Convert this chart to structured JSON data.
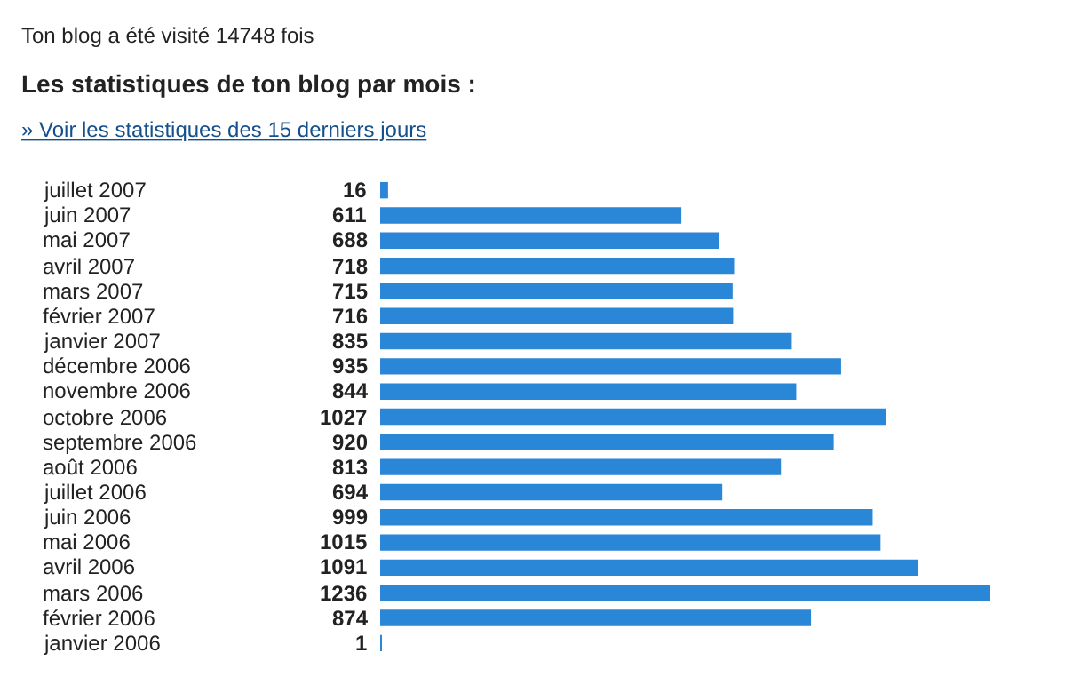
{
  "chart_data": {
    "type": "bar",
    "orientation": "horizontal",
    "title": "Ton blog a été visité 14748 fois",
    "subtitle": "Les statistiques de ton blog par mois :",
    "annotations": [
      "» Voir les statistiques des 15 derniers jours"
    ],
    "categories": [
      "juillet 2007",
      "juin 2007",
      "mai 2007",
      "avril 2007",
      "mars 2007",
      "février 2007",
      "janvier 2007",
      "décembre 2006",
      "novembre 2006",
      "octobre 2006",
      "septembre 2006",
      "août 2006",
      "juillet 2006",
      "juin 2006",
      "mai 2006",
      "avril 2006",
      "mars 2006",
      "février 2006",
      "janvier 2006"
    ],
    "values": [
      16,
      611,
      688,
      718,
      715,
      716,
      835,
      935,
      844,
      1027,
      920,
      813,
      694,
      999,
      1015,
      1091,
      1236,
      874,
      1
    ],
    "color": "#2a86d6",
    "data_labels": true
  }
}
